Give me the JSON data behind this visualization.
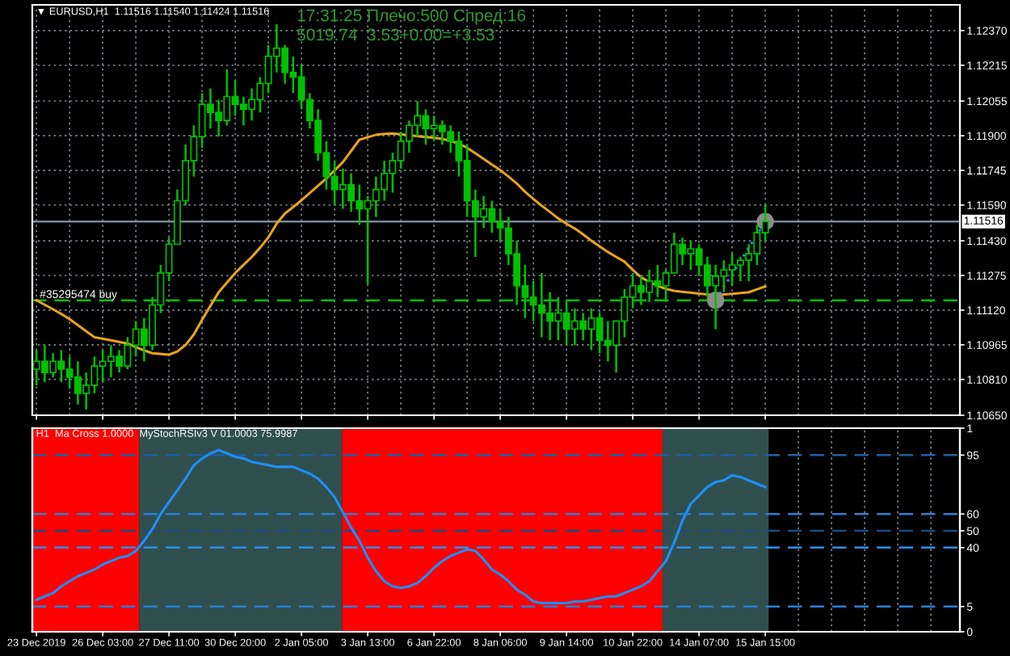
{
  "chart_data": [
    {
      "type": "candlestick",
      "title": "▼ EURUSD,H1  1.11516 1.11540 1.11424 1.11516",
      "annotations": [
        "17:31:25 Плечо:500 Спред:16",
        "5019.74  3.53+0.00=+3.53"
      ],
      "categories": [
        null,
        null,
        null,
        null,
        null,
        null,
        null,
        null,
        null,
        null,
        null,
        null,
        null,
        null,
        null,
        null,
        null,
        null,
        null,
        null,
        null,
        null,
        null,
        null,
        null,
        null,
        null,
        null,
        null,
        null,
        null,
        null,
        null,
        null,
        null,
        null,
        null,
        null,
        null,
        null,
        null,
        null,
        null,
        null,
        null,
        null,
        null,
        null,
        null,
        null,
        null,
        null,
        null,
        null,
        null,
        null,
        null,
        null,
        null,
        null,
        null,
        null,
        null,
        null,
        null,
        null,
        null,
        null,
        null,
        null,
        null,
        null,
        null,
        null,
        null,
        null,
        null,
        null,
        null,
        null,
        null,
        null,
        null,
        null,
        null,
        null,
        null,
        null,
        null,
        null,
        null,
        null,
        null,
        null,
        null,
        null,
        null,
        null,
        null,
        null,
        null,
        null,
        null,
        null,
        null,
        null,
        null,
        null,
        null,
        null,
        null,
        null
      ],
      "series": [
        {
          "color": "#00c000",
          "ohlc": [
            [
              1.10856,
              1.10942,
              1.10784,
              1.10891
            ],
            [
              1.10891,
              1.10963,
              1.10798,
              1.10841
            ],
            [
              1.10841,
              1.10927,
              1.1082,
              1.10891
            ],
            [
              1.10891,
              1.10942,
              1.10798,
              1.10856
            ],
            [
              1.10856,
              1.10913,
              1.10769,
              1.1082
            ],
            [
              1.1082,
              1.10891,
              1.10698,
              1.10748
            ],
            [
              1.10748,
              1.10841,
              1.10676,
              1.10784
            ],
            [
              1.10784,
              1.10913,
              1.10748,
              1.1087
            ],
            [
              1.1087,
              1.10942,
              1.10798,
              1.10891
            ],
            [
              1.10891,
              1.10963,
              1.1082,
              1.10913
            ],
            [
              1.10913,
              1.10942,
              1.10841,
              1.1087
            ],
            [
              1.1087,
              1.10999,
              1.10856,
              1.10963
            ],
            [
              1.10963,
              1.11071,
              1.10913,
              1.11035
            ],
            [
              1.11035,
              1.11085,
              1.10891,
              1.10963
            ],
            [
              1.10963,
              1.11178,
              1.10942,
              1.11143
            ],
            [
              1.11143,
              1.11322,
              1.11107,
              1.11286
            ],
            [
              1.11286,
              1.11444,
              1.1125,
              1.11415
            ],
            [
              1.11415,
              1.11659,
              1.11415,
              1.11609
            ],
            [
              1.11609,
              1.1186,
              1.11588,
              1.11788
            ],
            [
              1.11788,
              1.11946,
              1.11717,
              1.11896
            ],
            [
              1.11896,
              1.1209,
              1.11846,
              1.1204
            ],
            [
              1.1204,
              1.12111,
              1.11932,
              1.12004
            ],
            [
              1.12004,
              1.12061,
              1.11896,
              1.11968
            ],
            [
              1.11968,
              1.12197,
              1.11946,
              1.12075
            ],
            [
              1.12075,
              1.12147,
              1.11989,
              1.1204
            ],
            [
              1.1204,
              1.12075,
              1.11946,
              1.12018
            ],
            [
              1.12018,
              1.12111,
              1.11968,
              1.12061
            ],
            [
              1.12061,
              1.12162,
              1.12004,
              1.12133
            ],
            [
              1.12133,
              1.12305,
              1.1209,
              1.12255
            ],
            [
              1.12255,
              1.12398,
              1.12183,
              1.12291
            ],
            [
              1.12291,
              1.12305,
              1.12133,
              1.12183
            ],
            [
              1.12183,
              1.12255,
              1.1209,
              1.12162
            ],
            [
              1.12162,
              1.12219,
              1.12018,
              1.12061
            ],
            [
              1.12061,
              1.1209,
              1.11932,
              1.11968
            ],
            [
              1.11968,
              1.12018,
              1.11788,
              1.11824
            ],
            [
              1.11824,
              1.11875,
              1.11659,
              1.11717
            ],
            [
              1.11717,
              1.11788,
              1.11588,
              1.11659
            ],
            [
              1.11659,
              1.11753,
              1.11573,
              1.11681
            ],
            [
              1.11681,
              1.11731,
              1.11559,
              1.11609
            ],
            [
              1.11609,
              1.11681,
              1.11501,
              1.11573
            ],
            [
              1.11573,
              1.11631,
              1.11236,
              1.11609
            ],
            [
              1.11609,
              1.11717,
              1.11537,
              1.11659
            ],
            [
              1.11659,
              1.11788,
              1.11609,
              1.11731
            ],
            [
              1.11731,
              1.11824,
              1.11645,
              1.11788
            ],
            [
              1.11788,
              1.11918,
              1.11753,
              1.11875
            ],
            [
              1.11875,
              1.11968,
              1.11824,
              1.11946
            ],
            [
              1.11946,
              1.12054,
              1.11896,
              1.11989
            ],
            [
              1.11989,
              1.12018,
              1.1186,
              1.11932
            ],
            [
              1.11932,
              1.11989,
              1.11875,
              1.11946
            ],
            [
              1.11946,
              1.11968,
              1.1186,
              1.11918
            ],
            [
              1.11918,
              1.11946,
              1.11824,
              1.11875
            ],
            [
              1.11875,
              1.11918,
              1.11717,
              1.11788
            ],
            [
              1.11788,
              1.1186,
              1.11537,
              1.11609
            ],
            [
              1.11609,
              1.11659,
              1.11358,
              1.11537
            ],
            [
              1.11537,
              1.11631,
              1.11487,
              1.11573
            ],
            [
              1.11573,
              1.11609,
              1.11466,
              1.11516
            ],
            [
              1.11516,
              1.11573,
              1.1143,
              1.11487
            ],
            [
              1.11487,
              1.11537,
              1.11322,
              1.11372
            ],
            [
              1.11372,
              1.1143,
              1.11143,
              1.11229
            ],
            [
              1.11229,
              1.11322,
              1.11085,
              1.11178
            ],
            [
              1.11178,
              1.1125,
              1.11071,
              1.11143
            ],
            [
              1.11143,
              1.11286,
              1.10999,
              1.11107
            ],
            [
              1.11107,
              1.112,
              1.10985,
              1.11071
            ],
            [
              1.11071,
              1.11178,
              1.10985,
              1.11107
            ],
            [
              1.11107,
              1.11157,
              1.10963,
              1.11035
            ],
            [
              1.11035,
              1.11128,
              1.10963,
              1.11071
            ],
            [
              1.11071,
              1.11107,
              1.10985,
              1.11035
            ],
            [
              1.11035,
              1.11128,
              1.10942,
              1.11085
            ],
            [
              1.11085,
              1.11107,
              1.10927,
              1.10985
            ],
            [
              1.10985,
              1.11071,
              1.10891,
              1.10963
            ],
            [
              1.10963,
              1.11071,
              1.10841,
              1.11071
            ],
            [
              1.11071,
              1.11214,
              1.10999,
              1.11178
            ],
            [
              1.11178,
              1.11286,
              1.11128,
              1.11229
            ],
            [
              1.11229,
              1.11272,
              1.11143,
              1.112
            ],
            [
              1.112,
              1.113,
              1.11157,
              1.1125
            ],
            [
              1.1125,
              1.11322,
              1.11178,
              1.11229
            ],
            [
              1.11229,
              1.113,
              1.11157,
              1.11286
            ],
            [
              1.11286,
              1.11466,
              1.11286,
              1.11415
            ],
            [
              1.11415,
              1.11444,
              1.11322,
              1.11372
            ],
            [
              1.11372,
              1.1143,
              1.113,
              1.11394
            ],
            [
              1.11394,
              1.11415,
              1.11272,
              1.11322
            ],
            [
              1.11322,
              1.11358,
              1.11178,
              1.11229
            ],
            [
              1.11229,
              1.11322,
              1.11035,
              1.11272
            ],
            [
              1.11272,
              1.11343,
              1.112,
              1.113
            ],
            [
              1.113,
              1.11372,
              1.11229,
              1.11322
            ],
            [
              1.11322,
              1.11358,
              1.1125,
              1.11343
            ],
            [
              1.11343,
              1.11415,
              1.1125,
              1.11372
            ],
            [
              1.11372,
              1.11501,
              1.11322,
              1.11466
            ],
            [
              1.11466,
              1.11595,
              1.1143,
              1.11516
            ],
            null,
            null,
            null,
            null,
            null,
            null,
            null,
            null,
            null,
            null,
            null,
            null,
            null,
            null,
            null,
            null,
            null,
            null,
            null,
            null,
            null,
            null,
            null
          ]
        },
        {
          "type": "line",
          "color": "#e9a31b",
          "values": [
            1.11164,
            1.11144,
            1.11124,
            1.11103,
            1.1108,
            1.11053,
            1.11026,
            1.10999,
            1.10992,
            1.10985,
            1.10978,
            1.10971,
            1.10955,
            1.1094,
            1.10927,
            1.10924,
            1.10921,
            1.10935,
            1.10964,
            1.11011,
            1.11077,
            1.11139,
            1.112,
            1.11243,
            1.11286,
            1.11322,
            1.11358,
            1.11399,
            1.11445,
            1.11507,
            1.11552,
            1.11581,
            1.11611,
            1.11644,
            1.11676,
            1.11709,
            1.11745,
            1.11782,
            1.11832,
            1.11882,
            1.11893,
            1.11904,
            1.11908,
            1.1191,
            1.11906,
            1.11902,
            1.11898,
            1.11894,
            1.11891,
            1.11885,
            1.11877,
            1.11863,
            1.11846,
            1.11821,
            1.11796,
            1.11771,
            1.11746,
            1.11717,
            1.11686,
            1.11649,
            1.11617,
            1.11587,
            1.11559,
            1.1153,
            1.11506,
            1.11485,
            1.11459,
            1.1143,
            1.11405,
            1.1138,
            1.11358,
            1.11337,
            1.113,
            1.11267,
            1.11246,
            1.11229,
            1.11215,
            1.11206,
            1.11202,
            1.11198,
            1.11194,
            1.1119,
            1.11186,
            1.1119,
            1.11193,
            1.11196,
            1.112,
            1.11213,
            1.11226,
            null,
            null,
            null,
            null,
            null,
            null,
            null,
            null,
            null,
            null,
            null,
            null,
            null,
            null,
            null,
            null,
            null,
            null,
            null,
            null,
            null,
            null,
            null
          ]
        },
        {
          "type": "line",
          "color": "#1e90ff",
          "line_style": "dotted",
          "values": [
            null,
            null,
            null,
            null,
            null,
            null,
            null,
            null,
            null,
            null,
            null,
            null,
            null,
            null,
            null,
            null,
            null,
            null,
            null,
            null,
            null,
            null,
            null,
            null,
            null,
            null,
            null,
            null,
            null,
            null,
            null,
            null,
            null,
            null,
            null,
            null,
            null,
            null,
            null,
            null,
            null,
            null,
            null,
            null,
            null,
            null,
            null,
            null,
            null,
            null,
            null,
            null,
            null,
            null,
            null,
            null,
            null,
            null,
            null,
            null,
            null,
            null,
            null,
            null,
            null,
            null,
            null,
            null,
            null,
            null,
            null,
            null,
            null,
            null,
            null,
            null,
            null,
            null,
            null,
            null,
            null,
            null,
            1.11164,
            1.11223,
            1.11281,
            1.1134,
            1.11399,
            1.11457,
            1.11516,
            null,
            null,
            null,
            null,
            null,
            null,
            null,
            null,
            null,
            null,
            null,
            null,
            null,
            null,
            null,
            null,
            null,
            null,
            null,
            null,
            null,
            null,
            null
          ]
        },
        {
          "type": "scatter",
          "color": "#8c8c8c",
          "marker": "circle",
          "values": [
            null,
            null,
            null,
            null,
            null,
            null,
            null,
            null,
            null,
            null,
            null,
            null,
            null,
            null,
            null,
            null,
            null,
            null,
            null,
            null,
            null,
            null,
            null,
            null,
            null,
            null,
            null,
            null,
            null,
            null,
            null,
            null,
            null,
            null,
            null,
            null,
            null,
            null,
            null,
            null,
            null,
            null,
            null,
            null,
            null,
            null,
            null,
            null,
            null,
            null,
            null,
            null,
            null,
            null,
            null,
            null,
            null,
            null,
            null,
            null,
            null,
            null,
            null,
            null,
            null,
            null,
            null,
            null,
            null,
            null,
            null,
            null,
            null,
            null,
            null,
            null,
            null,
            null,
            null,
            null,
            null,
            null,
            1.11164,
            null,
            null,
            null,
            null,
            null,
            1.11516,
            null,
            null,
            null,
            null,
            null,
            null,
            null,
            null,
            null,
            null,
            null,
            null,
            null,
            null,
            null,
            null,
            null,
            null,
            null,
            null,
            null,
            null,
            null
          ]
        }
      ],
      "ref_lines": [
        {
          "axis": "y",
          "value": 1.11164,
          "label": "#35295474 buy",
          "color": "#00c000",
          "line_style": "dashed"
        },
        {
          "axis": "y",
          "value": 1.11516,
          "label": "1.11516",
          "color": "#778899",
          "line_style": "solid"
        }
      ],
      "ylim": [
        1.1065,
        1.12485
      ],
      "yticks": [
        {
          "value": 1.1065,
          "label": "1.10650"
        },
        {
          "value": 1.1081,
          "label": "1.10810"
        },
        {
          "value": 1.10965,
          "label": "1.10965"
        },
        {
          "value": 1.1112,
          "label": "1.11120"
        },
        {
          "value": 1.11275,
          "label": "1.11275"
        },
        {
          "value": 1.1143,
          "label": "1.11430"
        },
        {
          "value": 1.1159,
          "label": "1.11590"
        },
        {
          "value": 1.11745,
          "label": "1.11745"
        },
        {
          "value": 1.119,
          "label": "1.11900"
        },
        {
          "value": 1.12055,
          "label": "1.12055"
        },
        {
          "value": 1.12215,
          "label": "1.12215"
        },
        {
          "value": 1.1237,
          "label": "1.12370"
        }
      ],
      "grid": true,
      "tick_labels": "y"
    },
    {
      "type": "line",
      "title": "H1  Ma Cross 1.0000  MyStochRSIv3 V 01.0003 75.9987",
      "categories": [
        "23 Dec 2019",
        null,
        null,
        null,
        null,
        null,
        null,
        null,
        "26 Dec 03:00",
        null,
        null,
        null,
        null,
        null,
        null,
        null,
        "27 Dec 11:00",
        null,
        null,
        null,
        null,
        null,
        null,
        null,
        "30 Dec 20:00",
        null,
        null,
        null,
        null,
        null,
        null,
        null,
        "2 Jan 05:00",
        null,
        null,
        null,
        null,
        null,
        null,
        null,
        "3 Jan 13:00",
        null,
        null,
        null,
        null,
        null,
        null,
        null,
        "6 Jan 22:00",
        null,
        null,
        null,
        null,
        null,
        null,
        null,
        "8 Jan 06:00",
        null,
        null,
        null,
        null,
        null,
        null,
        null,
        "9 Jan 14:00",
        null,
        null,
        null,
        null,
        null,
        null,
        null,
        "10 Jan 22:00",
        null,
        null,
        null,
        null,
        null,
        null,
        null,
        "14 Jan 07:00",
        null,
        null,
        null,
        null,
        null,
        null,
        null,
        "15 Jan 15:00",
        null,
        null,
        null,
        null,
        null,
        null,
        null,
        null,
        null,
        null,
        null,
        null,
        null,
        null,
        null,
        null,
        null,
        null,
        null,
        null,
        null,
        null,
        null
      ],
      "series": [
        {
          "color": "#1e90ff",
          "values": [
            9,
            11,
            13,
            17,
            20,
            23,
            25,
            27,
            30,
            32,
            34,
            35,
            38,
            44,
            51,
            60,
            67,
            74,
            81,
            89,
            93,
            96,
            98,
            96,
            94,
            93,
            91,
            90,
            89,
            88,
            88,
            88,
            86,
            84,
            81,
            76,
            70,
            61,
            52,
            44,
            34,
            26,
            20,
            17,
            16,
            17,
            19,
            23,
            28,
            32,
            35,
            37,
            39,
            38,
            33,
            27,
            24,
            20,
            15,
            12,
            8,
            7,
            7,
            7,
            7,
            8,
            8,
            9,
            10,
            11,
            11,
            13,
            15,
            17,
            20,
            26,
            32,
            43,
            56,
            66,
            71,
            76,
            79,
            80,
            83,
            82,
            80,
            78,
            76,
            null,
            null,
            null,
            null,
            null,
            null,
            null,
            null,
            null,
            null,
            null,
            null,
            null,
            null,
            null,
            null,
            null,
            null,
            null,
            null,
            null,
            null,
            null
          ]
        }
      ],
      "ref_lines": [
        {
          "axis": "y",
          "value": 95,
          "color": "#1f5fa0",
          "line_style": "dashed"
        },
        {
          "axis": "y",
          "value": 60,
          "color": "#2b7fd4",
          "line_style": "dashed"
        },
        {
          "axis": "y",
          "value": 50,
          "color": "#1e4b7a",
          "line_style": "dashed"
        },
        {
          "axis": "y",
          "value": 40,
          "color": "#2f8ff0",
          "line_style": "dashed"
        },
        {
          "axis": "y",
          "value": 5,
          "color": "#2b7fd4",
          "line_style": "dashed"
        }
      ],
      "ylim": [
        -10,
        111
      ],
      "yticks": [
        5,
        40,
        50,
        60,
        95
      ],
      "y2lim": [
        0,
        1
      ],
      "y2ticks": [
        0,
        1
      ],
      "grid": "x"
    }
  ]
}
